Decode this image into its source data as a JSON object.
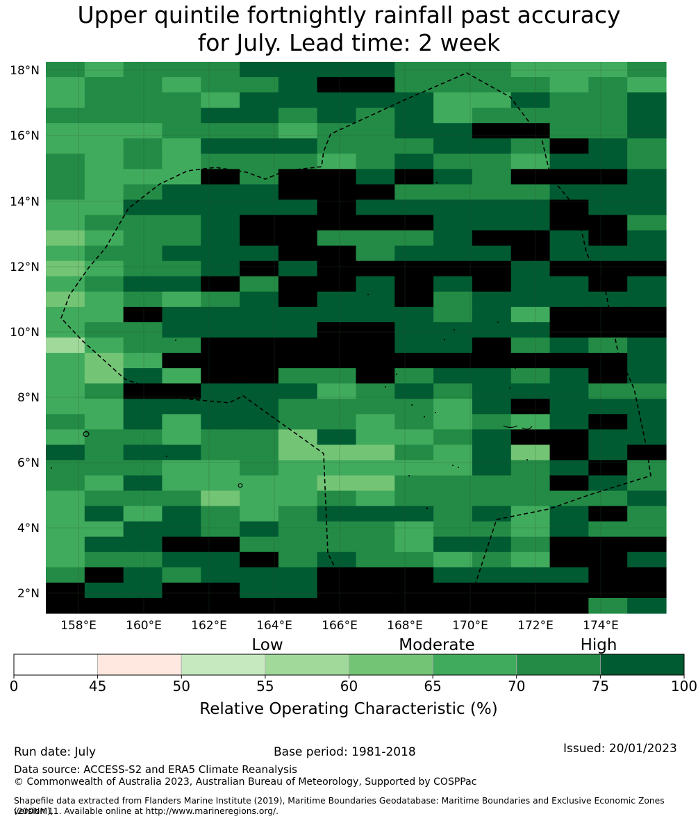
{
  "title": {
    "line1": "Upper quintile fortnightly rainfall past accuracy",
    "line2": "for July. Lead time: 2 week"
  },
  "map": {
    "lat_labels": [
      "18°N",
      "16°N",
      "14°N",
      "12°N",
      "10°N",
      "8°N",
      "6°N",
      "4°N",
      "2°N"
    ],
    "lon_labels": [
      "158°E",
      "160°E",
      "162°E",
      "164°E",
      "166°E",
      "168°E",
      "170°E",
      "172°E",
      "174°E"
    ],
    "grid_rows": [
      "6566677776665556",
      "5665667886666565",
      "5666577777557667",
      "6666776767566667",
      "5556665667788667",
      "5565777666776876",
      "6565666567665776",
      "6555868878768887",
      "6567778886666777",
      "5577777877777877",
      "5666788888777886",
      "4566788666788787",
      "5667778867778777",
      "4566787888887888",
      "5677868878787787",
      "4565678778677777",
      "5587777777675888",
      "5667777887777888",
      "3566888887786767",
      "5458888888888887",
      "5475886686776787",
      "5688777567677766",
      "5577776666578777",
      "6575776656565787",
      "5665664755678877",
      "7677664446574878",
      "6665565555576786",
      "6575555446666876",
      "5666455656666667",
      "5757656777675786",
      "5577676665665766",
      "5778866665776888",
      "5667786766565887",
      "6876777888777788",
      "8778877888888888",
      "8888888888888867"
    ],
    "boundary_label": "EEZ boundary (dashed)"
  },
  "legend": {
    "category_labels": [
      "Low",
      "Moderate",
      "High"
    ],
    "tick_labels": [
      "0",
      "45",
      "50",
      "55",
      "60",
      "65",
      "70",
      "75",
      "100"
    ],
    "colors": [
      "#ffffff",
      "#fee8df",
      "#c7e9c0",
      "#a1d99b",
      "#74c476",
      "#41ab5d",
      "#238b45",
      "#005a32"
    ],
    "axis_label": "Relative Operating Characteristic (%)"
  },
  "footer": {
    "run_date": "Run date: July",
    "base_period": "Base period: 1981-2018",
    "issued": "Issued: 20/01/2023",
    "data_source": "Data source: ACCESS-S2 and ERA5 Climate Reanalysis",
    "copyright": "© Commonwealth of Australia 2023, Australian Bureau of Meteorology, Supported by COSPPac",
    "shapefile_line1": "Shapefile data extracted from Flanders Marine Institute (2019), Maritime Boundaries Geodatabase: Maritime Boundaries and Exclusive Economic Zones (200NM),",
    "shapefile_line2": "version 11. Available online at http://www.marineregions.org/."
  }
}
